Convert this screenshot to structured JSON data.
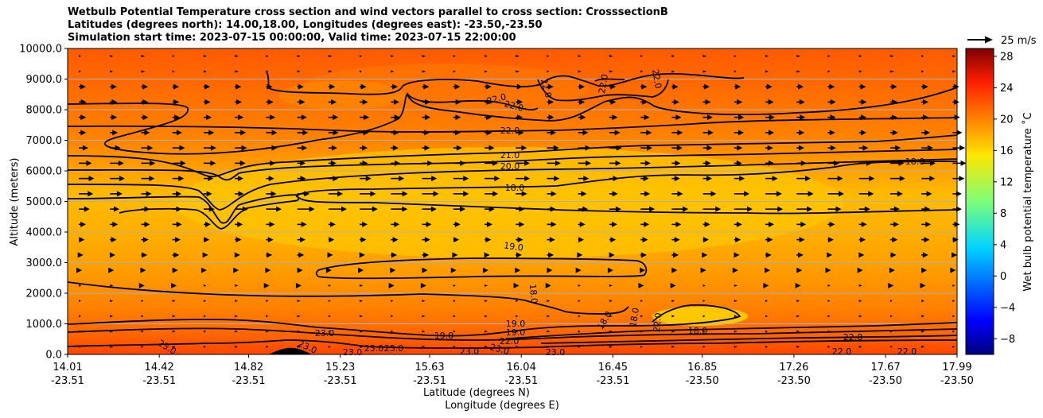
{
  "chart_data": {
    "type": "heatmap",
    "title_lines": [
      "Wetbulb Potential Temperature cross section and wind vectors parallel to cross section: CrosssectionB",
      "Latitudes (degrees north): 14.00,18.00, Longitudes (degrees east): -23.50,-23.50",
      "Simulation start time: 2023-07-15 00:00:00, Valid time: 2023-07-15 22:00:00"
    ],
    "xlabel_lat": "Latitude (degrees N)",
    "xlabel_lon": "Longitude (degrees E)",
    "ylabel": "Altitude (meters)",
    "x_ticks": [
      {
        "lat": "14.01",
        "lon": "-23.51"
      },
      {
        "lat": "14.42",
        "lon": "-23.51"
      },
      {
        "lat": "14.82",
        "lon": "-23.51"
      },
      {
        "lat": "15.23",
        "lon": "-23.51"
      },
      {
        "lat": "15.63",
        "lon": "-23.51"
      },
      {
        "lat": "16.04",
        "lon": "-23.51"
      },
      {
        "lat": "16.45",
        "lon": "-23.51"
      },
      {
        "lat": "16.85",
        "lon": "-23.50"
      },
      {
        "lat": "17.26",
        "lon": "-23.50"
      },
      {
        "lat": "17.67",
        "lon": "-23.50"
      },
      {
        "lat": "17.99",
        "lon": "-23.50"
      }
    ],
    "y_ticks": [
      "0.0",
      "1000.0",
      "2000.0",
      "3000.0",
      "4000.0",
      "5000.0",
      "6000.0",
      "7000.0",
      "8000.0",
      "9000.0",
      "10000.0"
    ],
    "ylim": [
      0,
      10000
    ],
    "colorbar": {
      "label": "Wet bulb potential temperature $^\\circ$C",
      "label_display": "Wet bulb potential temperature ˚C",
      "ticks": [
        "-8",
        "-4",
        "0",
        "4",
        "8",
        "12",
        "16",
        "20",
        "24",
        "28"
      ],
      "range": [
        -10,
        29
      ],
      "colormap": "jet"
    },
    "quiver_key": "25 m/s",
    "contour_labels": [
      "23.0",
      "23.0",
      "23.0",
      "23.0",
      "23.0",
      "23.0",
      "23.0",
      "23.0",
      "23.0",
      "19.0",
      "19.0",
      "19.0",
      "22.0",
      "22.0",
      "22.0",
      "18.0",
      "18.0",
      "18.0",
      "18.0",
      "18.0",
      "19.0",
      "20.0",
      "21.0",
      "22.0",
      "22.0",
      "22.0",
      "22.0",
      "22.0",
      "22.0",
      "22.0",
      "22.0",
      "18.0"
    ],
    "grid": "horizontal"
  }
}
